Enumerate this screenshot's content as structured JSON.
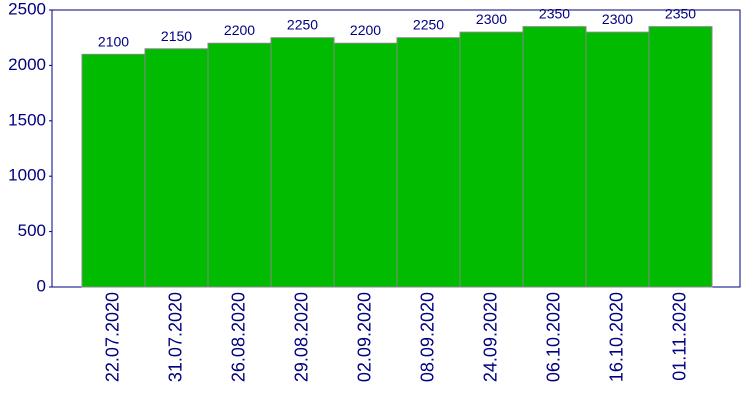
{
  "chart_data": {
    "type": "bar",
    "categories": [
      "22.07.2020",
      "31.07.2020",
      "26.08.2020",
      "29.08.2020",
      "02.09.2020",
      "08.09.2020",
      "24.09.2020",
      "06.10.2020",
      "16.10.2020",
      "01.11.2020"
    ],
    "values": [
      2100,
      2150,
      2200,
      2250,
      2200,
      2250,
      2300,
      2350,
      2300,
      2350
    ],
    "color": "#00bb00",
    "ylim": [
      0,
      2500
    ],
    "yticks": [
      0,
      500,
      1000,
      1500,
      2000,
      2500
    ]
  }
}
